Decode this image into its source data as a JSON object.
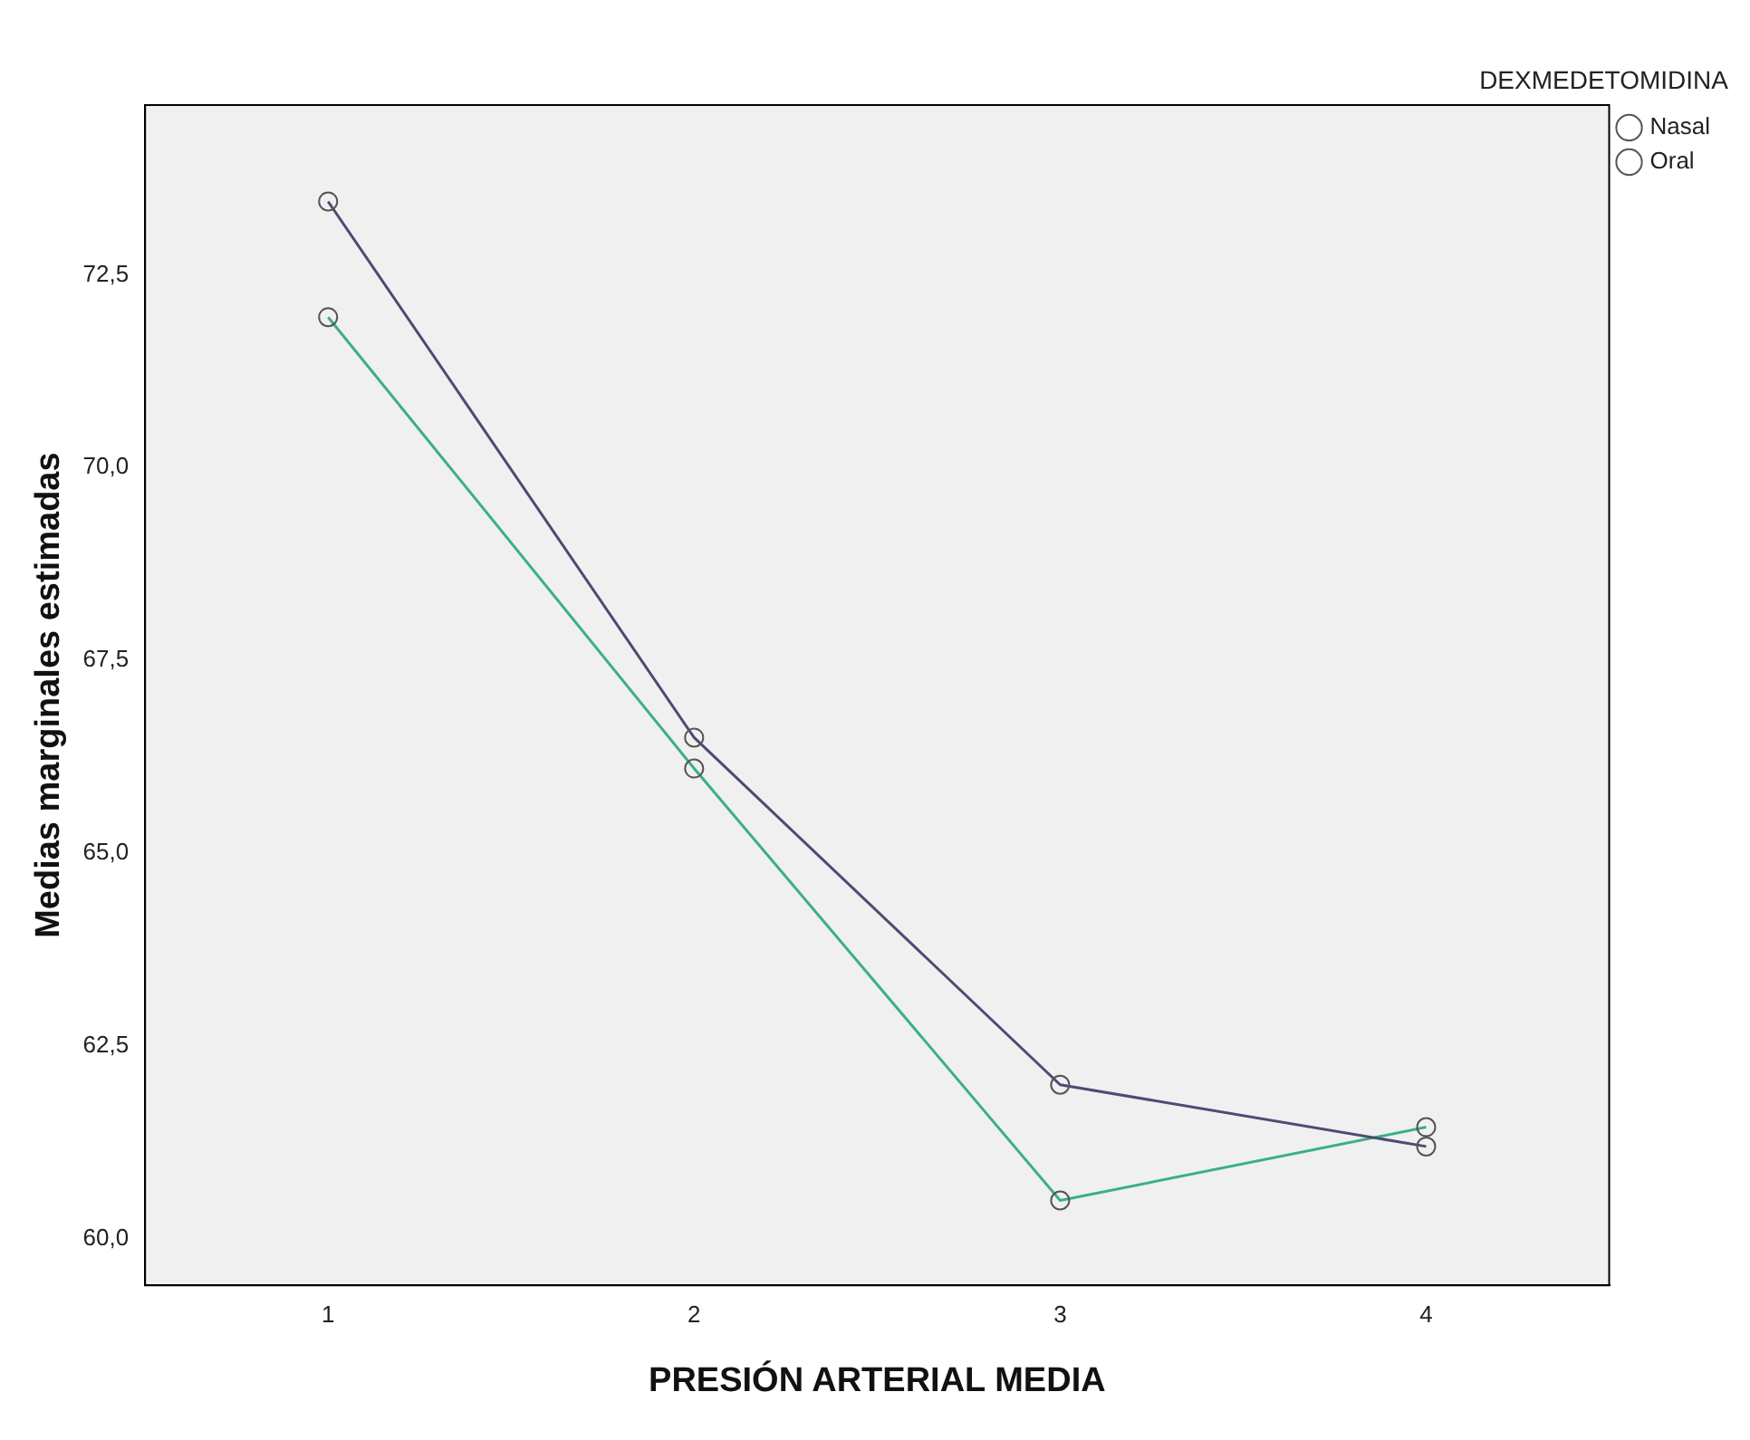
{
  "chart_data": {
    "type": "line",
    "xlabel": "PRESIÓN ARTERIAL MEDIA",
    "ylabel": "Medias marginales estimadas",
    "legend_title": "DEXMEDETOMIDINA",
    "categories": [
      "1",
      "2",
      "3",
      "4"
    ],
    "series": [
      {
        "name": "Nasal",
        "color": "#4b4c72",
        "values": [
          73.45,
          66.5,
          62.0,
          61.2
        ]
      },
      {
        "name": "Oral",
        "color": "#3caf85",
        "values": [
          71.95,
          66.1,
          60.5,
          61.45
        ]
      }
    ],
    "ylim": [
      59.4,
      74.7
    ],
    "yticks": [
      {
        "value": 60,
        "label": "60,0"
      },
      {
        "value": 62.5,
        "label": "62,5"
      },
      {
        "value": 65,
        "label": "65,0"
      },
      {
        "value": 67.5,
        "label": "67,5"
      },
      {
        "value": 70,
        "label": "70,0"
      },
      {
        "value": 72.5,
        "label": "72,5"
      }
    ],
    "grid": false,
    "legend": "top right",
    "marker": "circle",
    "line_style": "solid"
  }
}
